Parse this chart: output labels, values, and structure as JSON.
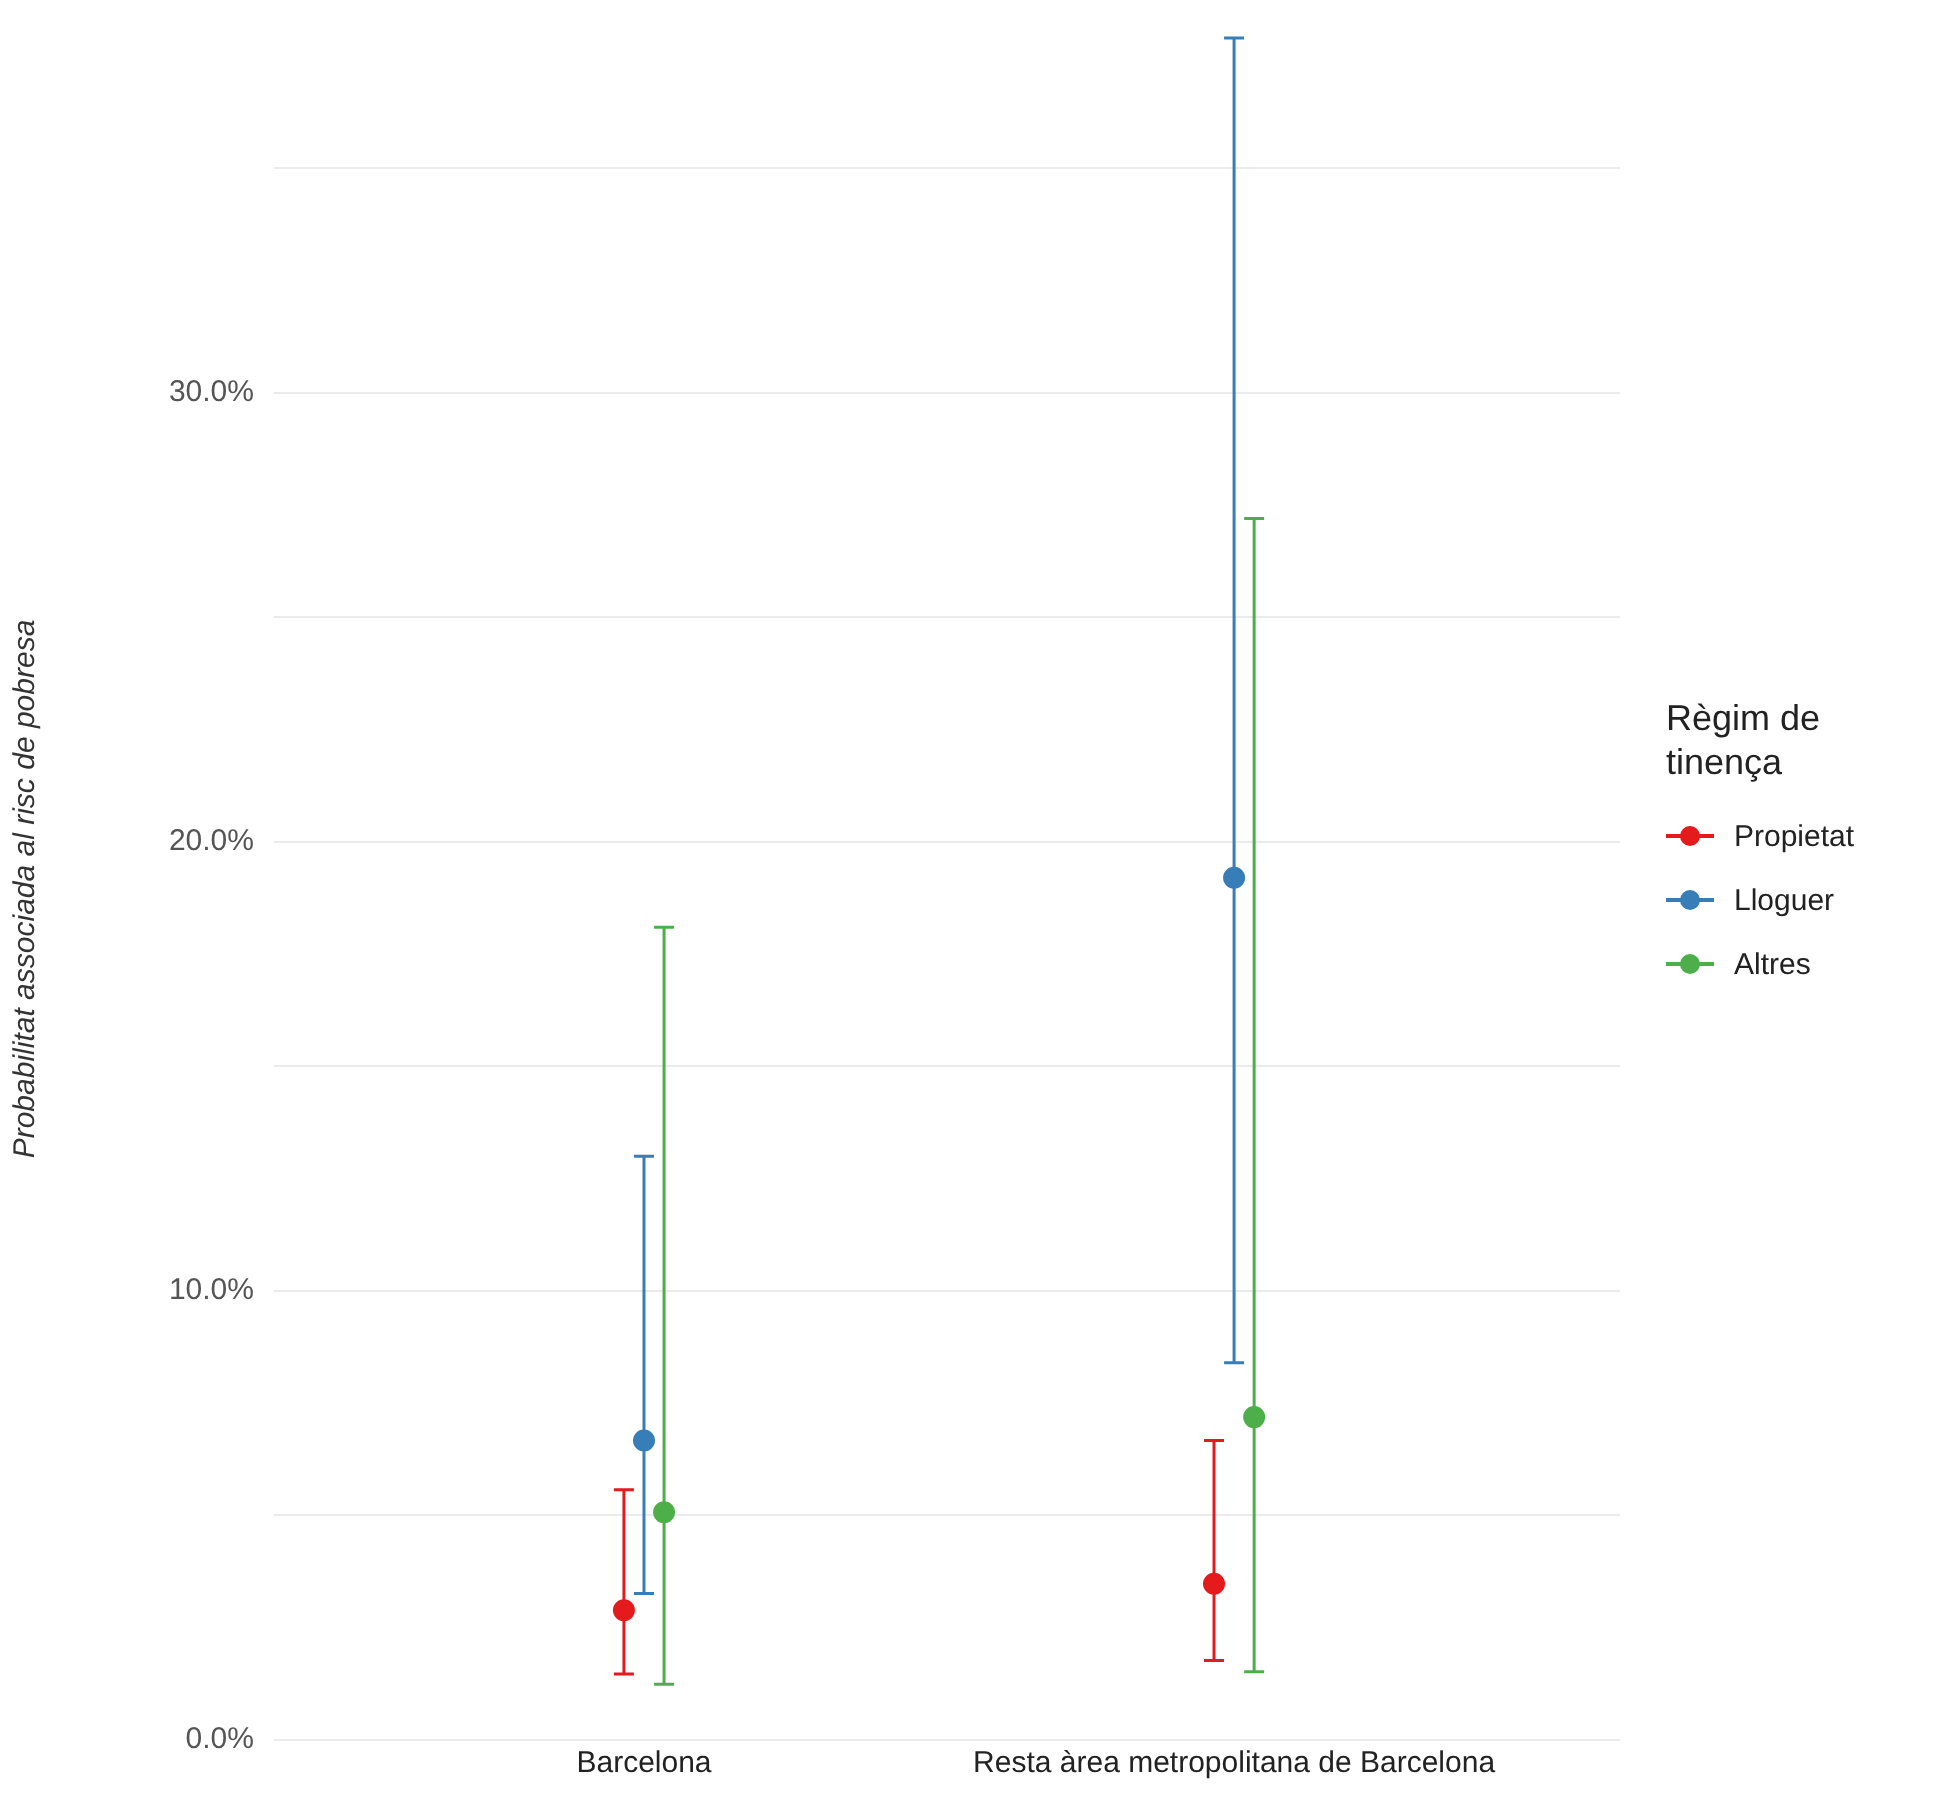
{
  "chart_data": {
    "type": "scatter",
    "ylabel": "Probabilitat associada al risc de pobresa",
    "legend_title": "Règim de tinença",
    "categories": [
      "Barcelona",
      "Resta àrea metropolitana de Barcelona"
    ],
    "series": [
      {
        "name": "Propietat",
        "color": "#e41a1c",
        "values": [
          2.89,
          3.48
        ],
        "errors": [
          [
            1.47,
            5.57
          ],
          [
            1.77,
            6.67
          ]
        ]
      },
      {
        "name": "Lloguer",
        "color": "#377eb8",
        "values": [
          6.67,
          19.2
        ],
        "errors": [
          [
            3.26,
            13.0
          ],
          [
            8.4,
            37.9
          ]
        ]
      },
      {
        "name": "Altres",
        "color": "#4daf4a",
        "values": [
          5.07,
          7.19
        ],
        "errors": [
          [
            1.24,
            18.1
          ],
          [
            1.52,
            27.2
          ]
        ]
      }
    ],
    "ylim": [
      0,
      37.9
    ],
    "yticks": [
      {
        "value": 0,
        "label": "0.0%"
      },
      {
        "value": 5,
        "label": null
      },
      {
        "value": 10,
        "label": "10.0%"
      },
      {
        "value": 15,
        "label": null
      },
      {
        "value": 20,
        "label": "20.0%"
      },
      {
        "value": 25,
        "label": null
      },
      {
        "value": 30,
        "label": "30.0%"
      },
      {
        "value": 35,
        "label": null
      }
    ],
    "grid": "y",
    "legend": "right",
    "marker": "circle"
  }
}
